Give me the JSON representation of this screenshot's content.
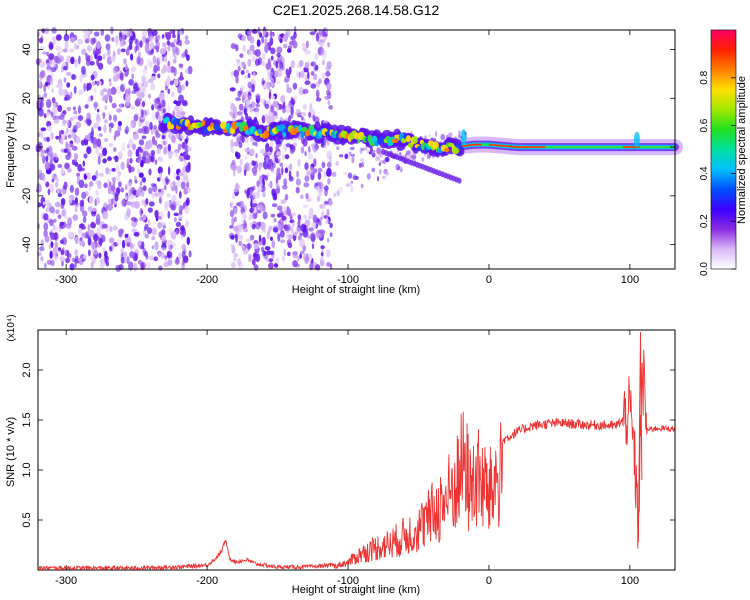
{
  "title": "C2E1.2025.268.14.58.G12",
  "chart_data": [
    {
      "type": "heatmap",
      "name": "spectrogram",
      "xlabel": "Height of straight line (km)",
      "ylabel": "Frequency (Hz)",
      "xlim": [
        -320,
        132
      ],
      "ylim": [
        -50,
        48
      ],
      "xticks": [
        -300,
        -200,
        -100,
        0,
        100
      ],
      "yticks": [
        -40,
        -20,
        0,
        20,
        40
      ],
      "colorbar": {
        "label": "Normalized spectral amplitude",
        "range": [
          0,
          1
        ],
        "ticks": [
          0.0,
          0.2,
          0.4,
          0.6,
          0.8
        ],
        "tick_labels": [
          "0.0",
          "0.2",
          "0.4",
          "0.6",
          "0.8"
        ],
        "colors": [
          "#ffffff",
          "#d9b8f7",
          "#8a2be2",
          "#3a00ff",
          "#0050ff",
          "#00c0ff",
          "#00e0a0",
          "#20e020",
          "#a0e800",
          "#ffe000",
          "#ff8000",
          "#ff2000",
          "#ff0066"
        ]
      },
      "features": {
        "noise_regions": [
          [
            -320,
            -212
          ],
          [
            -183,
            -112
          ]
        ],
        "ridge": [
          [
            -232,
            10
          ],
          [
            -215,
            9
          ],
          [
            -195,
            8
          ],
          [
            -175,
            8
          ],
          [
            -160,
            6
          ],
          [
            -140,
            7
          ],
          [
            -120,
            6
          ],
          [
            -100,
            5
          ],
          [
            -80,
            3
          ],
          [
            -60,
            3
          ],
          [
            -45,
            0
          ],
          [
            -25,
            0
          ],
          [
            -10,
            1
          ],
          [
            0,
            1
          ],
          [
            20,
            0
          ],
          [
            60,
            0
          ],
          [
            100,
            0
          ],
          [
            132,
            0
          ]
        ]
      }
    },
    {
      "type": "line",
      "name": "snr",
      "xlabel": "Height of straight line (km)",
      "ylabel": "SNR (10 * v/v)",
      "scale_label": "(x10⁴)",
      "xlim": [
        -320,
        132
      ],
      "ylim": [
        0,
        2.4
      ],
      "xticks": [
        -300,
        -200,
        -100,
        0,
        100
      ],
      "yticks": [
        0.5,
        1.0,
        1.5,
        2.0
      ],
      "ytick_labels": [
        "0.5",
        "1.0",
        "1.5",
        "2.0"
      ],
      "color": "#ee3333",
      "series": [
        {
          "name": "SNR",
          "x": [
            -320,
            -250,
            -220,
            -200,
            -195,
            -190,
            -187,
            -184,
            -180,
            -172,
            -165,
            -150,
            -130,
            -110,
            -100,
            -92,
            -80,
            -70,
            -60,
            -50,
            -42,
            -35,
            -30,
            -25,
            -20,
            -17,
            -14,
            -10,
            -5,
            0,
            5,
            10,
            20,
            30,
            40,
            50,
            60,
            70,
            80,
            90,
            95,
            100,
            103,
            106,
            108,
            110,
            112,
            120,
            132
          ],
          "y": [
            0.02,
            0.02,
            0.03,
            0.05,
            0.1,
            0.18,
            0.3,
            0.12,
            0.08,
            0.1,
            0.06,
            0.03,
            0.03,
            0.05,
            0.1,
            0.2,
            0.3,
            0.35,
            0.45,
            0.55,
            0.7,
            0.85,
            0.95,
            1.1,
            1.3,
            1.5,
            1.05,
            1.25,
            1.15,
            1.0,
            1.2,
            1.3,
            1.38,
            1.44,
            1.46,
            1.47,
            1.46,
            1.45,
            1.45,
            1.44,
            1.5,
            1.6,
            1.2,
            0.4,
            1.7,
            1.9,
            1.4,
            1.42,
            1.41
          ]
        }
      ]
    }
  ]
}
